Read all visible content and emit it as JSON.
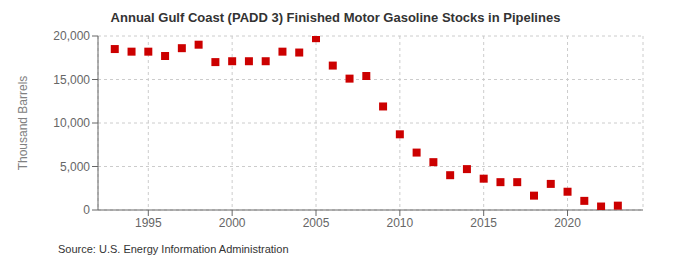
{
  "chart_data": {
    "type": "scatter",
    "title": "Annual Gulf Coast (PADD 3) Finished Motor Gasoline Stocks in Pipelines",
    "ylabel": "Thousand Barrels",
    "annotations": [
      "Source: U.S. Energy Information Administration"
    ],
    "x": [
      1993,
      1994,
      1995,
      1996,
      1997,
      1998,
      1999,
      2000,
      2001,
      2002,
      2003,
      2004,
      2005,
      2006,
      2007,
      2008,
      2009,
      2010,
      2011,
      2012,
      2013,
      2014,
      2015,
      2016,
      2017,
      2018,
      2019,
      2020,
      2021,
      2022,
      2023
    ],
    "values": [
      18500,
      18200,
      18200,
      17700,
      18600,
      19000,
      17000,
      17100,
      17100,
      17100,
      18200,
      18100,
      19750,
      16600,
      15100,
      15400,
      11900,
      8700,
      6600,
      5500,
      4000,
      4700,
      3600,
      3200,
      3200,
      1650,
      3000,
      2100,
      1050,
      400,
      500
    ],
    "color": "#cc0000",
    "marker": "square",
    "xlim": [
      1992,
      2024.5
    ],
    "xticks": [
      1995,
      2000,
      2005,
      2010,
      2015,
      2020
    ],
    "ylim": [
      0,
      20000
    ],
    "yticks": [
      0,
      {
        "value": 5000,
        "label": "5,000"
      },
      {
        "value": 10000,
        "label": "10,000"
      },
      {
        "value": 15000,
        "label": "15,000"
      },
      {
        "value": 20000,
        "label": "20,000"
      }
    ],
    "grid": true
  }
}
